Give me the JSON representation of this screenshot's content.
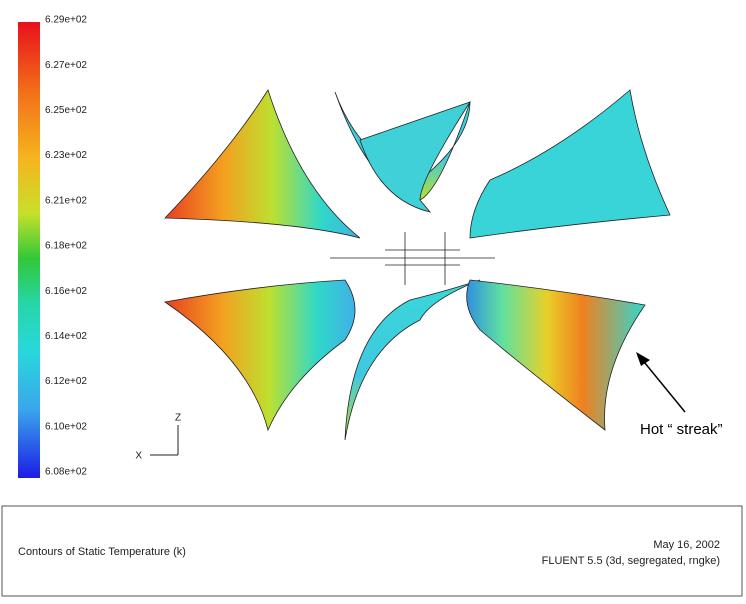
{
  "colorbar": {
    "labels": [
      "6.29e+02",
      "6.27e+02",
      "6.25e+02",
      "6.23e+02",
      "6.21e+02",
      "6.18e+02",
      "6.16e+02",
      "6.14e+02",
      "6.12e+02",
      "6.10e+02",
      "6.08e+02"
    ]
  },
  "axes_triad": {
    "z": "Z",
    "x": "X"
  },
  "annotation": "Hot “ streak”",
  "footer": {
    "title": "Contours of Static Temperature (k)",
    "date": "May 16, 2002",
    "software": "FLUENT 5.5 (3d, segregated, rngke)"
  }
}
